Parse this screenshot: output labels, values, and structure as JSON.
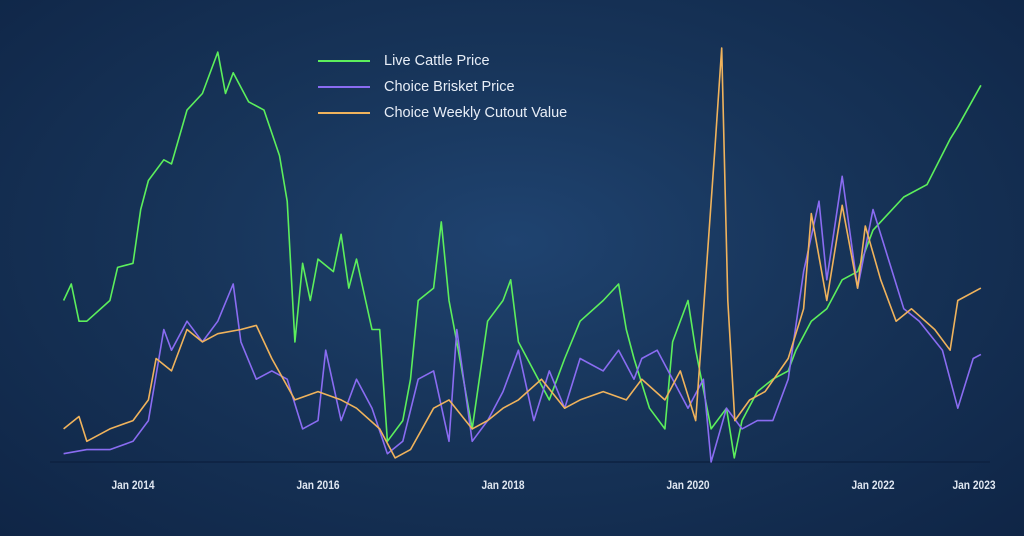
{
  "chart_data": {
    "type": "line",
    "title": "",
    "xlabel": "",
    "ylabel": "",
    "y_scale_note_hidden": true,
    "x_ticks": [
      "Jan 2014",
      "Jan 2016",
      "Jan 2018",
      "Jan 2020",
      "Jan 2022",
      "Jan 2023"
    ],
    "x_tick_dates": [
      "2014-01",
      "2016-01",
      "2018-01",
      "2020-01",
      "2022-01",
      "2023-01"
    ],
    "xlim": [
      "2013-03",
      "2023-03"
    ],
    "ylim": [
      0,
      100
    ],
    "grid": false,
    "legend_position": "top-center",
    "series": [
      {
        "name": "Live Cattle Price",
        "color": "#5cef5c",
        "points": [
          [
            "2013-04",
            39
          ],
          [
            "2013-05",
            43
          ],
          [
            "2013-06",
            34
          ],
          [
            "2013-07",
            34
          ],
          [
            "2013-10",
            39
          ],
          [
            "2013-11",
            47
          ],
          [
            "2014-01",
            48
          ],
          [
            "2014-02",
            61
          ],
          [
            "2014-03",
            68
          ],
          [
            "2014-05",
            73
          ],
          [
            "2014-06",
            72
          ],
          [
            "2014-08",
            85
          ],
          [
            "2014-10",
            89
          ],
          [
            "2014-12",
            99
          ],
          [
            "2015-01",
            89
          ],
          [
            "2015-02",
            94
          ],
          [
            "2015-04",
            87
          ],
          [
            "2015-06",
            85
          ],
          [
            "2015-08",
            74
          ],
          [
            "2015-09",
            63
          ],
          [
            "2015-10",
            29
          ],
          [
            "2015-11",
            48
          ],
          [
            "2015-12",
            39
          ],
          [
            "2016-01",
            49
          ],
          [
            "2016-03",
            46
          ],
          [
            "2016-04",
            55
          ],
          [
            "2016-05",
            42
          ],
          [
            "2016-06",
            49
          ],
          [
            "2016-08",
            32
          ],
          [
            "2016-09",
            32
          ],
          [
            "2016-10",
            5
          ],
          [
            "2016-12",
            10
          ],
          [
            "2017-01",
            20
          ],
          [
            "2017-02",
            39
          ],
          [
            "2017-04",
            42
          ],
          [
            "2017-05",
            58
          ],
          [
            "2017-06",
            39
          ],
          [
            "2017-07",
            29
          ],
          [
            "2017-09",
            8
          ],
          [
            "2017-11",
            34
          ],
          [
            "2018-01",
            39
          ],
          [
            "2018-02",
            44
          ],
          [
            "2018-03",
            29
          ],
          [
            "2018-05",
            22
          ],
          [
            "2018-07",
            15
          ],
          [
            "2018-09",
            25
          ],
          [
            "2018-11",
            34
          ],
          [
            "2019-02",
            39
          ],
          [
            "2019-04",
            43
          ],
          [
            "2019-05",
            32
          ],
          [
            "2019-06",
            25
          ],
          [
            "2019-08",
            13
          ],
          [
            "2019-10",
            8
          ],
          [
            "2019-11",
            29
          ],
          [
            "2020-01",
            39
          ],
          [
            "2020-02",
            27
          ],
          [
            "2020-04",
            8
          ],
          [
            "2020-06",
            13
          ],
          [
            "2020-07",
            1
          ],
          [
            "2020-08",
            10
          ],
          [
            "2020-10",
            17
          ],
          [
            "2020-12",
            20
          ],
          [
            "2021-02",
            22
          ],
          [
            "2021-03",
            27
          ],
          [
            "2021-05",
            34
          ],
          [
            "2021-07",
            37
          ],
          [
            "2021-09",
            44
          ],
          [
            "2021-11",
            46
          ],
          [
            "2022-01",
            56
          ],
          [
            "2022-03",
            60
          ],
          [
            "2022-05",
            64
          ],
          [
            "2022-08",
            67
          ],
          [
            "2022-11",
            78
          ],
          [
            "2022-12",
            81
          ],
          [
            "2023-03",
            91
          ]
        ]
      },
      {
        "name": "Choice Brisket Price",
        "color": "#8a6cf2",
        "points": [
          [
            "2013-04",
            2
          ],
          [
            "2013-07",
            3
          ],
          [
            "2013-10",
            3
          ],
          [
            "2014-01",
            5
          ],
          [
            "2014-03",
            10
          ],
          [
            "2014-05",
            32
          ],
          [
            "2014-06",
            27
          ],
          [
            "2014-08",
            34
          ],
          [
            "2014-10",
            29
          ],
          [
            "2014-12",
            34
          ],
          [
            "2015-02",
            43
          ],
          [
            "2015-03",
            29
          ],
          [
            "2015-05",
            20
          ],
          [
            "2015-07",
            22
          ],
          [
            "2015-09",
            20
          ],
          [
            "2015-11",
            8
          ],
          [
            "2016-01",
            10
          ],
          [
            "2016-02",
            27
          ],
          [
            "2016-04",
            10
          ],
          [
            "2016-06",
            20
          ],
          [
            "2016-08",
            13
          ],
          [
            "2016-10",
            2
          ],
          [
            "2016-12",
            5
          ],
          [
            "2017-02",
            20
          ],
          [
            "2017-04",
            22
          ],
          [
            "2017-06",
            5
          ],
          [
            "2017-07",
            32
          ],
          [
            "2017-09",
            5
          ],
          [
            "2017-11",
            10
          ],
          [
            "2018-01",
            17
          ],
          [
            "2018-03",
            27
          ],
          [
            "2018-05",
            10
          ],
          [
            "2018-07",
            22
          ],
          [
            "2018-09",
            13
          ],
          [
            "2018-11",
            25
          ],
          [
            "2019-02",
            22
          ],
          [
            "2019-04",
            27
          ],
          [
            "2019-06",
            20
          ],
          [
            "2019-07",
            25
          ],
          [
            "2019-09",
            27
          ],
          [
            "2019-11",
            20
          ],
          [
            "2020-01",
            13
          ],
          [
            "2020-03",
            20
          ],
          [
            "2020-04",
            0
          ],
          [
            "2020-06",
            13
          ],
          [
            "2020-08",
            8
          ],
          [
            "2020-10",
            10
          ],
          [
            "2020-12",
            10
          ],
          [
            "2021-02",
            20
          ],
          [
            "2021-04",
            46
          ],
          [
            "2021-06",
            63
          ],
          [
            "2021-07",
            44
          ],
          [
            "2021-09",
            69
          ],
          [
            "2021-11",
            42
          ],
          [
            "2022-01",
            61
          ],
          [
            "2022-03",
            49
          ],
          [
            "2022-05",
            37
          ],
          [
            "2022-07",
            34
          ],
          [
            "2022-10",
            27
          ],
          [
            "2022-12",
            13
          ],
          [
            "2023-02",
            25
          ],
          [
            "2023-03",
            26
          ]
        ]
      },
      {
        "name": "Choice Weekly Cutout Value",
        "color": "#f0b35c",
        "points": [
          [
            "2013-04",
            8
          ],
          [
            "2013-06",
            11
          ],
          [
            "2013-07",
            5
          ],
          [
            "2013-10",
            8
          ],
          [
            "2014-01",
            10
          ],
          [
            "2014-03",
            15
          ],
          [
            "2014-04",
            25
          ],
          [
            "2014-06",
            22
          ],
          [
            "2014-08",
            32
          ],
          [
            "2014-10",
            29
          ],
          [
            "2014-12",
            31
          ],
          [
            "2015-03",
            32
          ],
          [
            "2015-05",
            33
          ],
          [
            "2015-07",
            25
          ],
          [
            "2015-10",
            15
          ],
          [
            "2016-01",
            17
          ],
          [
            "2016-04",
            15
          ],
          [
            "2016-06",
            13
          ],
          [
            "2016-09",
            8
          ],
          [
            "2016-11",
            1
          ],
          [
            "2017-01",
            3
          ],
          [
            "2017-04",
            13
          ],
          [
            "2017-06",
            15
          ],
          [
            "2017-09",
            8
          ],
          [
            "2017-11",
            10
          ],
          [
            "2018-01",
            13
          ],
          [
            "2018-03",
            15
          ],
          [
            "2018-06",
            20
          ],
          [
            "2018-09",
            13
          ],
          [
            "2018-11",
            15
          ],
          [
            "2019-02",
            17
          ],
          [
            "2019-05",
            15
          ],
          [
            "2019-07",
            20
          ],
          [
            "2019-10",
            15
          ],
          [
            "2019-12",
            22
          ],
          [
            "2020-02",
            10
          ],
          [
            "2020-04-15",
            75
          ],
          [
            "2020-05-12",
            100
          ],
          [
            "2020-06-06",
            39
          ],
          [
            "2020-07-03",
            10
          ],
          [
            "2020-09",
            15
          ],
          [
            "2020-11",
            17
          ],
          [
            "2021-02",
            25
          ],
          [
            "2021-04",
            37
          ],
          [
            "2021-05",
            60
          ],
          [
            "2021-07",
            39
          ],
          [
            "2021-09",
            62
          ],
          [
            "2021-11",
            42
          ],
          [
            "2021-12",
            57
          ],
          [
            "2022-02",
            44
          ],
          [
            "2022-04",
            34
          ],
          [
            "2022-06",
            37
          ],
          [
            "2022-09",
            32
          ],
          [
            "2022-11",
            27
          ],
          [
            "2022-12",
            39
          ],
          [
            "2023-03",
            42
          ]
        ]
      }
    ]
  }
}
